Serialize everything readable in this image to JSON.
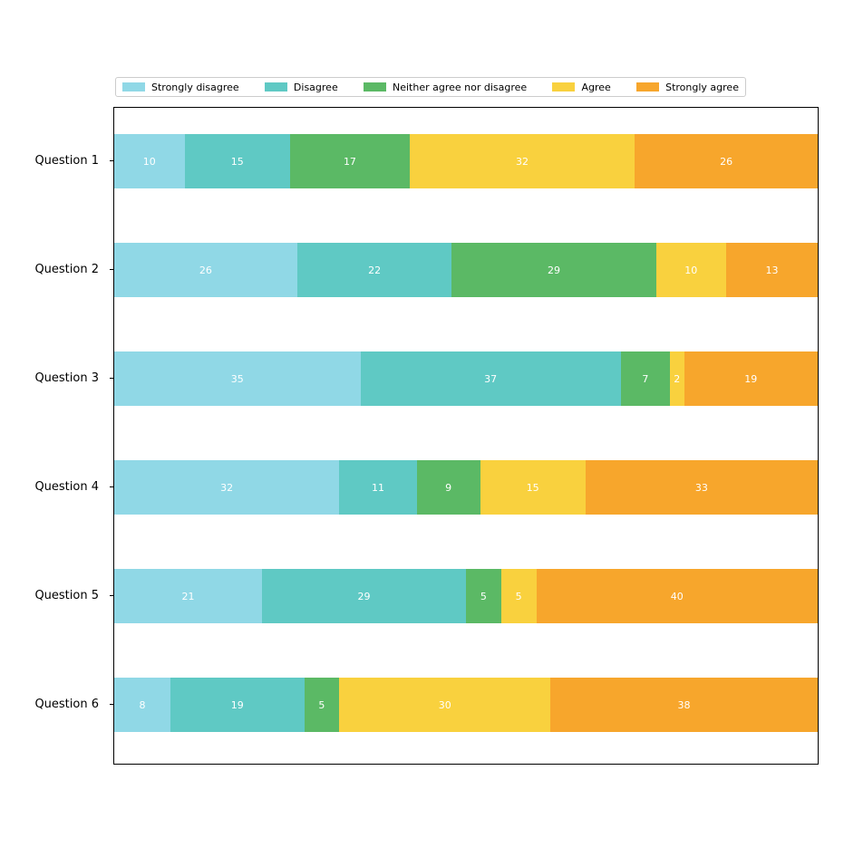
{
  "figure": {
    "background": "#ffffff",
    "plot_border_color": "#000000",
    "legend_border_color": "#cccccc"
  },
  "chart_data": {
    "type": "bar",
    "orientation": "horizontal",
    "stacked": true,
    "title": "",
    "xlabel": "",
    "ylabel": "",
    "xlim": [
      0,
      100
    ],
    "grid": false,
    "legend_position": "top",
    "value_label_color": "#ffffff",
    "categories": [
      "Question 1",
      "Question 2",
      "Question 3",
      "Question 4",
      "Question 5",
      "Question 6"
    ],
    "series": [
      {
        "name": "Strongly disagree",
        "color": "#90D8E6",
        "values": [
          10,
          26,
          35,
          32,
          21,
          8
        ]
      },
      {
        "name": "Disagree",
        "color": "#5FC9C4",
        "values": [
          15,
          22,
          37,
          11,
          29,
          19
        ]
      },
      {
        "name": "Neither agree nor disagree",
        "color": "#5BB965",
        "values": [
          17,
          29,
          7,
          9,
          5,
          5
        ]
      },
      {
        "name": "Agree",
        "color": "#F9D13E",
        "values": [
          32,
          10,
          2,
          15,
          5,
          30
        ]
      },
      {
        "name": "Strongly agree",
        "color": "#F7A62C",
        "values": [
          26,
          13,
          19,
          33,
          40,
          38
        ]
      }
    ]
  }
}
